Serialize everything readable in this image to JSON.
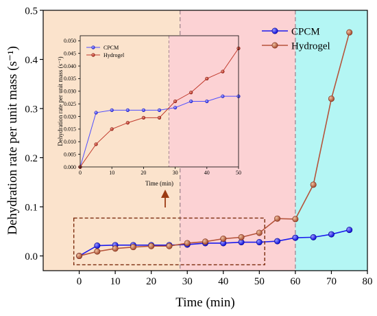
{
  "chart_data": [
    {
      "id": "main",
      "type": "line",
      "xlabel": "Time (min)",
      "ylabel": "Dehydration rate per unit mass (s⁻¹)",
      "xlim": [
        -10,
        80
      ],
      "ylim": [
        -0.03,
        0.5
      ],
      "xticks": [
        0,
        10,
        20,
        30,
        40,
        50,
        60,
        70,
        80
      ],
      "yticks": [
        0.0,
        0.1,
        0.2,
        0.3,
        0.4,
        0.5
      ],
      "xtick_labels": [
        "0",
        "10",
        "20",
        "30",
        "40",
        "50",
        "60",
        "70",
        "80"
      ],
      "ytick_labels": [
        "0.0",
        "0.1",
        "0.2",
        "0.3",
        "0.4",
        "0.5"
      ],
      "legend_position": "top-right",
      "series": [
        {
          "name": "CPCM",
          "color": "#1a1aee",
          "x": [
            0,
            5,
            10,
            15,
            20,
            25,
            30,
            35,
            40,
            45,
            50,
            55,
            60,
            65,
            70,
            75
          ],
          "y": [
            0.0,
            0.021,
            0.022,
            0.022,
            0.022,
            0.022,
            0.023,
            0.026,
            0.026,
            0.028,
            0.028,
            0.03,
            0.037,
            0.038,
            0.044,
            0.053
          ]
        },
        {
          "name": "Hydrogel",
          "color": "#b5533a",
          "x": [
            0,
            5,
            10,
            15,
            20,
            25,
            30,
            35,
            40,
            45,
            50,
            55,
            60,
            65,
            70,
            75
          ],
          "y": [
            0.0,
            0.009,
            0.015,
            0.018,
            0.02,
            0.02,
            0.026,
            0.029,
            0.035,
            0.038,
            0.047,
            0.076,
            0.075,
            0.145,
            0.32,
            0.455
          ]
        }
      ],
      "regions": [
        {
          "from": -10,
          "to": 28,
          "color": "#fbe3cc"
        },
        {
          "from": 28,
          "to": 60,
          "color": "#fcd2d4"
        },
        {
          "from": 60,
          "to": 80,
          "color": "#b4f6f4"
        }
      ],
      "dashed_lines_x": [
        28,
        60
      ],
      "zoom_box": {
        "x": [
          -1.5,
          51.5
        ],
        "y": [
          -0.018,
          0.077
        ]
      }
    },
    {
      "id": "inset",
      "type": "line",
      "xlabel": "Time (min)",
      "ylabel": "Dehydration rate per unit mass (s⁻¹)",
      "xlim": [
        0,
        50
      ],
      "ylim": [
        0,
        0.052
      ],
      "xticks": [
        0,
        10,
        20,
        30,
        40,
        50
      ],
      "yticks": [
        0.0,
        0.005,
        0.01,
        0.015,
        0.02,
        0.025,
        0.03,
        0.035,
        0.04,
        0.045,
        0.05
      ],
      "xtick_labels": [
        "0",
        "10",
        "20",
        "30",
        "40",
        "50"
      ],
      "ytick_labels": [
        "0.000",
        "0.005",
        "0.010",
        "0.015",
        "0.020",
        "0.025",
        "0.030",
        "0.035",
        "0.040",
        "0.045",
        "0.050"
      ],
      "legend_position": "top-left",
      "series": [
        {
          "name": "CPCM",
          "color": "#4d4dff",
          "x": [
            0,
            5,
            10,
            15,
            20,
            25,
            30,
            35,
            40,
            45,
            50
          ],
          "y": [
            0.0,
            0.0215,
            0.0225,
            0.0225,
            0.0225,
            0.0225,
            0.0235,
            0.026,
            0.026,
            0.028,
            0.028
          ]
        },
        {
          "name": "Hydrogel",
          "color": "#c0392b",
          "x": [
            0,
            5,
            10,
            15,
            20,
            25,
            30,
            35,
            40,
            45,
            50
          ],
          "y": [
            0.0,
            0.009,
            0.015,
            0.0175,
            0.0195,
            0.0195,
            0.026,
            0.0295,
            0.035,
            0.0378,
            0.047
          ]
        }
      ],
      "regions": [
        {
          "from": 0,
          "to": 28,
          "color": "#fbe3cc"
        },
        {
          "from": 28,
          "to": 50,
          "color": "#fcd2d4"
        }
      ],
      "dashed_lines_x": [
        28
      ]
    }
  ]
}
